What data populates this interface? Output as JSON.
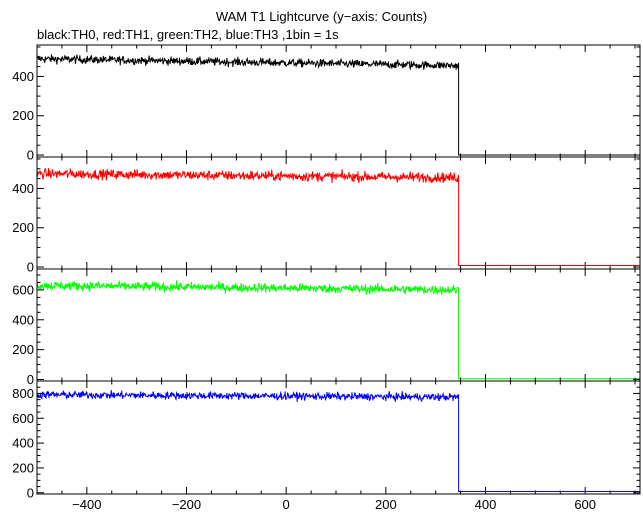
{
  "title": "WAM T1 Lightcurve (y−axis: Counts)",
  "subtitle": "black:TH0, red:TH1, green:TH2, blue:TH3 ,1bin = 1s",
  "chart_data": {
    "type": "line",
    "xlim": [
      -500,
      710
    ],
    "x_ticks": [
      -400,
      -200,
      0,
      200,
      400,
      600
    ],
    "x_tick_labels": [
      "−400",
      "−200",
      "0",
      "200",
      "400",
      "600"
    ],
    "bin_seconds": 1,
    "drop_time": 346,
    "grid": false,
    "panels": [
      {
        "series": "TH0",
        "color": "#000000",
        "ylim": [
          -10,
          560
        ],
        "y_ticks": [
          0,
          200,
          400
        ],
        "y_tick_labels": [
          "0",
          "200",
          "400"
        ],
        "segments": [
          {
            "x": [
              -500,
              346
            ],
            "mean": [
              490,
              455
            ],
            "noise": 15
          },
          {
            "x": [
              346,
              710
            ],
            "mean": [
              0,
              0
            ],
            "noise": 0
          }
        ]
      },
      {
        "series": "TH1",
        "color": "#ff0000",
        "ylim": [
          -10,
          560
        ],
        "y_ticks": [
          0,
          200,
          400
        ],
        "y_tick_labels": [
          "0",
          "200",
          "400"
        ],
        "segments": [
          {
            "x": [
              -500,
              346
            ],
            "mean": [
              475,
              455
            ],
            "noise": 18
          },
          {
            "x": [
              346,
              710
            ],
            "mean": [
              8,
              8
            ],
            "noise": 0
          }
        ]
      },
      {
        "series": "TH2",
        "color": "#00ff00",
        "ylim": [
          -10,
          740
        ],
        "y_ticks": [
          0,
          200,
          400,
          600
        ],
        "y_tick_labels": [
          "0",
          "200",
          "400",
          "600"
        ],
        "segments": [
          {
            "x": [
              -500,
              346
            ],
            "mean": [
              630,
              600
            ],
            "noise": 22
          },
          {
            "x": [
              346,
              710
            ],
            "mean": [
              5,
              5
            ],
            "noise": 0
          }
        ]
      },
      {
        "series": "TH3",
        "color": "#0000ff",
        "ylim": [
          -10,
          900
        ],
        "y_ticks": [
          0,
          200,
          400,
          600,
          800
        ],
        "y_tick_labels": [
          "0",
          "200",
          "400",
          "600",
          "800"
        ],
        "segments": [
          {
            "x": [
              -500,
              346
            ],
            "mean": [
              790,
              770
            ],
            "noise": 22
          },
          {
            "x": [
              346,
              710
            ],
            "mean": [
              10,
              10
            ],
            "noise": 0
          }
        ]
      }
    ]
  }
}
